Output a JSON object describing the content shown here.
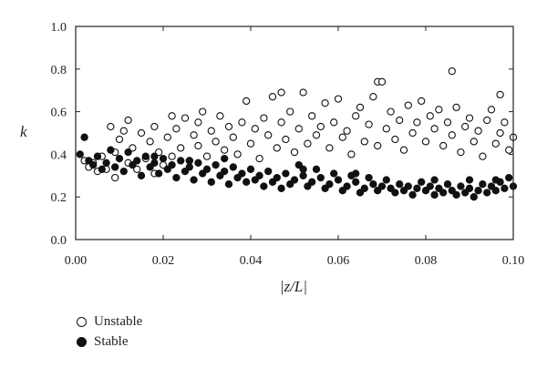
{
  "chart_data": {
    "type": "scatter",
    "xlabel": "|z/L|",
    "ylabel": "k",
    "xlim": [
      0.0,
      0.1
    ],
    "ylim": [
      0.0,
      1.0
    ],
    "x_ticks": [
      "0.00",
      "0.02",
      "0.04",
      "0.06",
      "0.08",
      "0.10"
    ],
    "y_ticks": [
      "0.0",
      "0.2",
      "0.4",
      "0.6",
      "0.8",
      "1.0"
    ],
    "grid": false,
    "legend_position": "bottom-left, outside plot",
    "marker_color": "#111111",
    "series": [
      {
        "name": "Unstable",
        "marker": "open-circle",
        "points": [
          [
            0.002,
            0.37
          ],
          [
            0.003,
            0.34
          ],
          [
            0.004,
            0.36
          ],
          [
            0.005,
            0.32
          ],
          [
            0.006,
            0.39
          ],
          [
            0.007,
            0.33
          ],
          [
            0.008,
            0.53
          ],
          [
            0.009,
            0.41
          ],
          [
            0.009,
            0.29
          ],
          [
            0.01,
            0.47
          ],
          [
            0.011,
            0.51
          ],
          [
            0.012,
            0.56
          ],
          [
            0.012,
            0.36
          ],
          [
            0.013,
            0.43
          ],
          [
            0.014,
            0.33
          ],
          [
            0.015,
            0.5
          ],
          [
            0.016,
            0.38
          ],
          [
            0.017,
            0.46
          ],
          [
            0.018,
            0.53
          ],
          [
            0.018,
            0.31
          ],
          [
            0.019,
            0.41
          ],
          [
            0.02,
            0.35
          ],
          [
            0.021,
            0.48
          ],
          [
            0.022,
            0.58
          ],
          [
            0.022,
            0.39
          ],
          [
            0.023,
            0.52
          ],
          [
            0.024,
            0.43
          ],
          [
            0.025,
            0.57
          ],
          [
            0.026,
            0.37
          ],
          [
            0.027,
            0.49
          ],
          [
            0.028,
            0.55
          ],
          [
            0.028,
            0.44
          ],
          [
            0.029,
            0.6
          ],
          [
            0.03,
            0.39
          ],
          [
            0.031,
            0.51
          ],
          [
            0.032,
            0.46
          ],
          [
            0.033,
            0.58
          ],
          [
            0.034,
            0.42
          ],
          [
            0.035,
            0.53
          ],
          [
            0.036,
            0.48
          ],
          [
            0.037,
            0.4
          ],
          [
            0.038,
            0.55
          ],
          [
            0.039,
            0.65
          ],
          [
            0.04,
            0.45
          ],
          [
            0.041,
            0.52
          ],
          [
            0.042,
            0.38
          ],
          [
            0.043,
            0.57
          ],
          [
            0.044,
            0.49
          ],
          [
            0.045,
            0.67
          ],
          [
            0.046,
            0.43
          ],
          [
            0.047,
            0.55
          ],
          [
            0.047,
            0.69
          ],
          [
            0.048,
            0.47
          ],
          [
            0.049,
            0.6
          ],
          [
            0.05,
            0.41
          ],
          [
            0.051,
            0.52
          ],
          [
            0.052,
            0.69
          ],
          [
            0.053,
            0.45
          ],
          [
            0.054,
            0.58
          ],
          [
            0.055,
            0.49
          ],
          [
            0.056,
            0.53
          ],
          [
            0.057,
            0.64
          ],
          [
            0.058,
            0.43
          ],
          [
            0.059,
            0.55
          ],
          [
            0.06,
            0.66
          ],
          [
            0.061,
            0.48
          ],
          [
            0.062,
            0.51
          ],
          [
            0.063,
            0.4
          ],
          [
            0.064,
            0.58
          ],
          [
            0.065,
            0.62
          ],
          [
            0.066,
            0.46
          ],
          [
            0.067,
            0.54
          ],
          [
            0.068,
            0.67
          ],
          [
            0.069,
            0.44
          ],
          [
            0.069,
            0.74
          ],
          [
            0.07,
            0.74
          ],
          [
            0.071,
            0.52
          ],
          [
            0.072,
            0.6
          ],
          [
            0.073,
            0.47
          ],
          [
            0.074,
            0.56
          ],
          [
            0.075,
            0.42
          ],
          [
            0.076,
            0.63
          ],
          [
            0.077,
            0.5
          ],
          [
            0.078,
            0.55
          ],
          [
            0.079,
            0.65
          ],
          [
            0.08,
            0.46
          ],
          [
            0.081,
            0.58
          ],
          [
            0.082,
            0.52
          ],
          [
            0.083,
            0.61
          ],
          [
            0.084,
            0.44
          ],
          [
            0.085,
            0.55
          ],
          [
            0.086,
            0.79
          ],
          [
            0.086,
            0.49
          ],
          [
            0.087,
            0.62
          ],
          [
            0.088,
            0.41
          ],
          [
            0.089,
            0.53
          ],
          [
            0.09,
            0.57
          ],
          [
            0.091,
            0.46
          ],
          [
            0.092,
            0.51
          ],
          [
            0.093,
            0.39
          ],
          [
            0.094,
            0.56
          ],
          [
            0.095,
            0.61
          ],
          [
            0.096,
            0.45
          ],
          [
            0.097,
            0.68
          ],
          [
            0.097,
            0.5
          ],
          [
            0.098,
            0.55
          ],
          [
            0.099,
            0.42
          ],
          [
            0.1,
            0.48
          ]
        ]
      },
      {
        "name": "Stable",
        "marker": "filled-circle",
        "points": [
          [
            0.001,
            0.4
          ],
          [
            0.002,
            0.48
          ],
          [
            0.003,
            0.37
          ],
          [
            0.004,
            0.35
          ],
          [
            0.005,
            0.39
          ],
          [
            0.006,
            0.33
          ],
          [
            0.007,
            0.36
          ],
          [
            0.008,
            0.42
          ],
          [
            0.009,
            0.34
          ],
          [
            0.01,
            0.38
          ],
          [
            0.011,
            0.32
          ],
          [
            0.012,
            0.41
          ],
          [
            0.013,
            0.35
          ],
          [
            0.014,
            0.37
          ],
          [
            0.015,
            0.3
          ],
          [
            0.016,
            0.39
          ],
          [
            0.017,
            0.34
          ],
          [
            0.018,
            0.36
          ],
          [
            0.019,
            0.31
          ],
          [
            0.02,
            0.38
          ],
          [
            0.021,
            0.33
          ],
          [
            0.022,
            0.35
          ],
          [
            0.023,
            0.29
          ],
          [
            0.024,
            0.37
          ],
          [
            0.025,
            0.32
          ],
          [
            0.026,
            0.34
          ],
          [
            0.027,
            0.28
          ],
          [
            0.028,
            0.36
          ],
          [
            0.029,
            0.31
          ],
          [
            0.03,
            0.33
          ],
          [
            0.031,
            0.27
          ],
          [
            0.032,
            0.35
          ],
          [
            0.033,
            0.3
          ],
          [
            0.034,
            0.32
          ],
          [
            0.035,
            0.26
          ],
          [
            0.036,
            0.34
          ],
          [
            0.037,
            0.29
          ],
          [
            0.038,
            0.31
          ],
          [
            0.039,
            0.27
          ],
          [
            0.04,
            0.33
          ],
          [
            0.041,
            0.28
          ],
          [
            0.042,
            0.3
          ],
          [
            0.043,
            0.25
          ],
          [
            0.044,
            0.32
          ],
          [
            0.045,
            0.27
          ],
          [
            0.046,
            0.29
          ],
          [
            0.047,
            0.24
          ],
          [
            0.048,
            0.31
          ],
          [
            0.049,
            0.26
          ],
          [
            0.05,
            0.28
          ],
          [
            0.051,
            0.35
          ],
          [
            0.052,
            0.3
          ],
          [
            0.053,
            0.25
          ],
          [
            0.054,
            0.27
          ],
          [
            0.055,
            0.33
          ],
          [
            0.056,
            0.29
          ],
          [
            0.057,
            0.24
          ],
          [
            0.058,
            0.26
          ],
          [
            0.059,
            0.31
          ],
          [
            0.06,
            0.28
          ],
          [
            0.061,
            0.23
          ],
          [
            0.062,
            0.25
          ],
          [
            0.063,
            0.3
          ],
          [
            0.064,
            0.27
          ],
          [
            0.065,
            0.22
          ],
          [
            0.066,
            0.24
          ],
          [
            0.067,
            0.29
          ],
          [
            0.068,
            0.26
          ],
          [
            0.069,
            0.23
          ],
          [
            0.07,
            0.25
          ],
          [
            0.071,
            0.28
          ],
          [
            0.072,
            0.24
          ],
          [
            0.073,
            0.22
          ],
          [
            0.074,
            0.26
          ],
          [
            0.075,
            0.23
          ],
          [
            0.076,
            0.25
          ],
          [
            0.077,
            0.21
          ],
          [
            0.078,
            0.24
          ],
          [
            0.079,
            0.27
          ],
          [
            0.08,
            0.23
          ],
          [
            0.081,
            0.25
          ],
          [
            0.082,
            0.21
          ],
          [
            0.083,
            0.24
          ],
          [
            0.084,
            0.22
          ],
          [
            0.085,
            0.26
          ],
          [
            0.086,
            0.23
          ],
          [
            0.087,
            0.21
          ],
          [
            0.088,
            0.25
          ],
          [
            0.089,
            0.22
          ],
          [
            0.09,
            0.24
          ],
          [
            0.091,
            0.2
          ],
          [
            0.092,
            0.23
          ],
          [
            0.093,
            0.26
          ],
          [
            0.094,
            0.22
          ],
          [
            0.095,
            0.25
          ],
          [
            0.096,
            0.23
          ],
          [
            0.097,
            0.27
          ],
          [
            0.098,
            0.24
          ],
          [
            0.099,
            0.29
          ],
          [
            0.1,
            0.25
          ],
          [
            0.018,
            0.39
          ],
          [
            0.026,
            0.37
          ],
          [
            0.034,
            0.38
          ],
          [
            0.052,
            0.33
          ],
          [
            0.064,
            0.31
          ],
          [
            0.082,
            0.28
          ],
          [
            0.09,
            0.28
          ],
          [
            0.096,
            0.28
          ]
        ]
      }
    ]
  },
  "legend": {
    "items": [
      {
        "label": "Unstable",
        "marker": "open-circle"
      },
      {
        "label": "Stable",
        "marker": "filled-circle"
      }
    ]
  }
}
